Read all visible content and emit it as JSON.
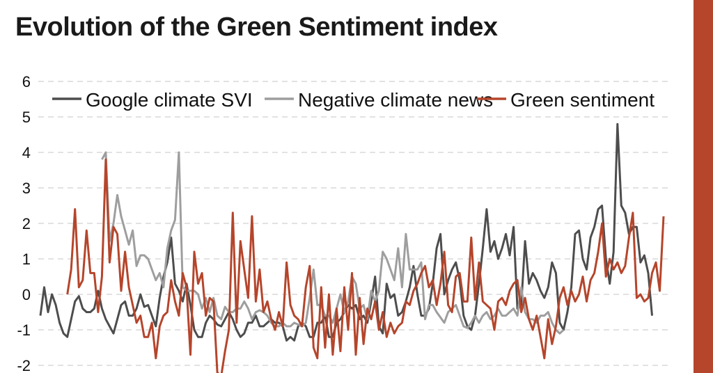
{
  "chart_data": {
    "type": "line",
    "title": "Evolution of the Green Sentiment index",
    "xlabel": "",
    "ylabel": "",
    "ylim": [
      -2,
      6
    ],
    "yticks": [
      6,
      5,
      4,
      3,
      2,
      1,
      0,
      -1,
      -2
    ],
    "grid": true,
    "legend_position": "top",
    "x_domain": [
      0,
      160
    ],
    "series": [
      {
        "name": "Google climate SVI",
        "color": "#4d4d4d",
        "start": 0,
        "values": [
          -0.6,
          0.2,
          -0.5,
          0,
          -0.3,
          -0.8,
          -1.1,
          -1.2,
          -0.7,
          -0.2,
          -0.05,
          -0.4,
          -0.5,
          -0.5,
          -0.4,
          0.1,
          -0.4,
          -0.7,
          -0.9,
          -1.1,
          -0.7,
          -0.3,
          -0.2,
          -0.6,
          -0.6,
          -0.4,
          0,
          -0.35,
          -0.3,
          -0.6,
          -0.9,
          -0.1,
          0.5,
          0.9,
          1.6,
          0.3,
          0.1,
          -0.2,
          0.3,
          -0.3,
          -1.0,
          -1.2,
          -1.2,
          -0.8,
          -0.6,
          -0.7,
          -0.85,
          -0.9,
          -0.7,
          -0.5,
          -0.7,
          -1.0,
          -1.2,
          -1.1,
          -0.8,
          -0.8,
          -0.6,
          -0.9,
          -0.9,
          -0.8,
          -0.7,
          -0.8,
          -0.8,
          -0.9,
          -1.3,
          -1.2,
          -1.3,
          -0.9,
          -0.8,
          -0.9,
          -1.2,
          -1.2,
          -0.8,
          -0.8,
          -0.6,
          -1.2,
          -1.2,
          -0.8,
          -0.7,
          -0.5,
          -0.3,
          -0.4,
          -0.3,
          -0.7,
          -0.6,
          -0.8,
          -0.2,
          0.5,
          -0.9,
          -1.1,
          0.3,
          -0.1,
          0,
          -0.6,
          -0.5,
          -0.2,
          0.2,
          0.8,
          0,
          -0.6,
          -0.6,
          -0.4,
          0.3,
          1.3,
          1.7,
          0,
          0.4,
          0.7,
          0.9,
          0.4,
          -0.6,
          -0.9,
          -1.0,
          -0.6,
          0.3,
          1.3,
          2.4,
          1.2,
          1.5,
          1.0,
          1.3,
          1.7,
          1.1,
          1.9,
          -0.4,
          -0.3,
          1.5,
          0.3,
          0.6,
          0.4,
          0.1,
          -0.1,
          0.2,
          0.9,
          0.6,
          -0.8,
          -1.0,
          -0.5,
          0.2,
          1.7,
          1.8,
          1.0,
          0.7,
          1.6,
          1.9,
          2.4,
          2.5,
          1.0,
          0.3,
          1.2,
          4.8,
          2.5,
          2.3,
          1.7,
          1.9,
          1.9,
          0.9,
          1.1,
          0.6,
          -0.6
        ]
      },
      {
        "name": "Negative climate news",
        "color": "#9e9e9e",
        "start": 16,
        "values": [
          3.8,
          4.0,
          1.5,
          2.0,
          2.8,
          2.2,
          1.8,
          1.4,
          1.8,
          0.8,
          1.1,
          1.1,
          1.0,
          0.7,
          0.4,
          0.6,
          0.2,
          1.3,
          1.8,
          2.1,
          4.0,
          0.2,
          0.1,
          0.1,
          0.1,
          0,
          -0.4,
          -0.1,
          -0.5,
          -0.1,
          -0.6,
          -0.7,
          -0.35,
          -0.5,
          -0.5,
          -0.4,
          -0.4,
          -0.2,
          -0.4,
          -0.7,
          -0.5,
          -0.45,
          -0.5,
          -0.6,
          -0.8,
          -0.9,
          -0.9,
          -0.8,
          -0.9,
          -0.9,
          -0.8,
          -0.85,
          -0.9,
          -0.8,
          -0.1,
          0.7,
          -0.3,
          -0.3,
          -0.6,
          -0.6,
          -0.8,
          -0.4,
          0,
          -0.5,
          -0.2,
          0.5,
          0.3,
          -0.4,
          -0.3,
          -0.7,
          0.1,
          -0.2,
          0.1,
          1.2,
          1.0,
          0.7,
          0.4,
          1.3,
          0.2,
          1.7,
          0.7,
          0.7,
          0.7,
          0.9,
          -0.7,
          -0.3,
          -0.3,
          -0.5,
          -0.65,
          -0.8,
          -0.5,
          -0.4,
          -0.3,
          -0.6,
          -0.9,
          -0.95,
          -0.8,
          -0.6,
          -0.8,
          -0.6,
          -0.5,
          -0.7,
          -0.6,
          -0.4,
          -0.6,
          -0.6,
          -0.5,
          -0.4,
          -0.6,
          0.2,
          -0.5,
          -0.7,
          -0.7,
          -0.8,
          -0.6,
          -0.6,
          -0.5,
          -0.8,
          -1.0,
          -1.1,
          -1.0
        ]
      },
      {
        "name": "Green sentiment",
        "color": "#b5452b",
        "start": 7,
        "values": [
          0,
          0.7,
          2.4,
          0.2,
          0.4,
          1.8,
          0.6,
          0.6,
          -0.5,
          0.5,
          3.8,
          0.9,
          1.9,
          1.7,
          0.1,
          1.2,
          0.2,
          -0.3,
          -0.8,
          -0.6,
          -1.2,
          -1.2,
          -0.8,
          -1.8,
          -0.9,
          -0.6,
          -0.5,
          0.4,
          -0.2,
          -0.6,
          0.6,
          0.2,
          -1.7,
          1.2,
          0.3,
          0.6,
          -0.6,
          -0.1,
          -0.2,
          -2.2,
          -2.3,
          -1.6,
          -1.0,
          2.3,
          -0.8,
          1.5,
          0.7,
          -0.1,
          2.2,
          -0.2,
          0.7,
          -0.5,
          -0.2,
          -0.7,
          -1.0,
          -0.5,
          -0.9,
          0.9,
          -0.3,
          -0.6,
          -0.7,
          -0.9,
          0.2,
          0.8,
          -1.5,
          -1.8,
          0.2,
          -1.5,
          0,
          -1.7,
          -0.4,
          -1.6,
          0.2,
          -1.0,
          0.6,
          -1.7,
          -0.1,
          -1.4,
          -0.4,
          -0.7,
          -0.2,
          -1.0,
          -0.5,
          -1.2,
          -0.8,
          -1.1,
          -0.9,
          -0.8,
          -0.2,
          -0.3,
          0.1,
          0.3,
          0.6,
          0.8,
          0.2,
          0.4,
          -0.3,
          0.3,
          1.2,
          -0.3,
          -0.5,
          0.5,
          0.6,
          -0.2,
          -0.2,
          1.6,
          -0.15,
          0.9,
          -0.2,
          -0.3,
          -0.4,
          -1.0,
          -0.2,
          -0.1,
          -0.3,
          0.1,
          0.3,
          0.4,
          -0.5,
          -0.1,
          -0.7,
          -1.0,
          -0.6,
          -1.2,
          -1.8,
          -0.7,
          -1.4,
          -0.9,
          -0.1,
          0.2,
          -0.3,
          0.1,
          -0.2,
          0,
          0.5,
          -0.2,
          0.4,
          0.6,
          1.2,
          2.0,
          0.5,
          1.0,
          0.7,
          0.9,
          0.6,
          0.8,
          1.6,
          2.3,
          -0.1,
          0,
          -0.2,
          -0.1,
          0.6,
          0.9,
          0.1,
          2.2
        ]
      }
    ]
  },
  "accent_color": "#b5452b"
}
